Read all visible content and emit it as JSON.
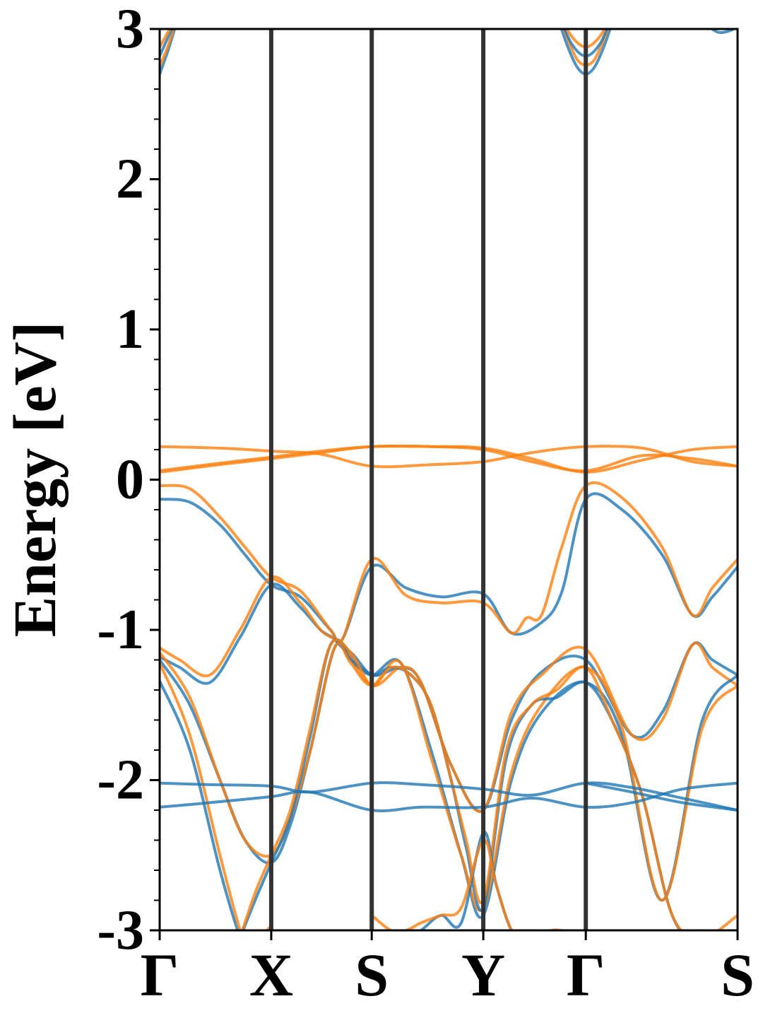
{
  "chart_data": {
    "type": "line",
    "ylabel": "Energy [eV]",
    "ylim": [
      -3,
      3
    ],
    "yticks": [
      {
        "value": 3,
        "label": "3"
      },
      {
        "value": 2,
        "label": "2"
      },
      {
        "value": 1,
        "label": "1"
      },
      {
        "value": 0,
        "label": "0"
      },
      {
        "value": -1,
        "label": "-1"
      },
      {
        "value": -2,
        "label": "-2"
      },
      {
        "value": -3,
        "label": "-3"
      }
    ],
    "xlim": [
      0,
      5.75
    ],
    "kpoints": [
      {
        "x": 0.0,
        "label": "Γ"
      },
      {
        "x": 1.11,
        "label": "X"
      },
      {
        "x": 2.11,
        "label": "S"
      },
      {
        "x": 3.22,
        "label": "Y"
      },
      {
        "x": 4.24,
        "label": "Γ"
      },
      {
        "x": 5.75,
        "label": "S"
      }
    ],
    "grid": false,
    "legend": "none",
    "colors": {
      "blue": "#1f77b4",
      "orange": "#ff7f0e",
      "kline": "#333333"
    },
    "series": [
      {
        "color": "blue",
        "x": [
          0.0,
          0.3,
          0.6,
          0.85,
          1.11,
          1.4,
          1.7,
          1.82,
          2.11,
          2.45,
          2.8,
          3.22,
          3.5,
          3.8,
          4.0,
          4.24,
          4.6,
          5.0,
          5.3,
          5.5,
          5.75
        ],
        "y": [
          -0.13,
          -0.15,
          -0.3,
          -0.5,
          -0.7,
          -0.78,
          -1.0,
          -1.06,
          -0.58,
          -0.72,
          -0.78,
          -0.76,
          -1.02,
          -0.95,
          -0.75,
          -0.13,
          -0.2,
          -0.5,
          -0.9,
          -0.78,
          -0.58
        ]
      },
      {
        "color": "orange",
        "x": [
          0.0,
          0.3,
          0.6,
          0.85,
          1.11,
          1.4,
          1.7,
          1.82,
          2.11,
          2.45,
          2.8,
          3.22,
          3.5,
          3.65,
          3.8,
          4.0,
          4.24,
          4.6,
          5.0,
          5.3,
          5.5,
          5.75
        ],
        "y": [
          -0.04,
          -0.06,
          -0.25,
          -0.45,
          -0.65,
          -0.74,
          -1.0,
          -1.06,
          -0.53,
          -0.77,
          -0.82,
          -0.82,
          -1.02,
          -0.92,
          -0.9,
          -0.45,
          -0.04,
          -0.12,
          -0.45,
          -0.9,
          -0.72,
          -0.53
        ]
      },
      {
        "color": "blue",
        "x": [
          0.0,
          0.2,
          0.5,
          0.8,
          1.11,
          1.4,
          1.6,
          1.74,
          1.82,
          2.11,
          2.4,
          2.6,
          2.9,
          3.22,
          3.5,
          3.8,
          4.24,
          4.7,
          5.0,
          5.3,
          5.5,
          5.75
        ],
        "y": [
          -1.18,
          -1.25,
          -1.35,
          -1.05,
          -0.7,
          -0.85,
          -1.0,
          -1.06,
          -1.12,
          -1.3,
          -1.25,
          -1.35,
          -1.9,
          -2.2,
          -1.6,
          -1.28,
          -1.2,
          -1.7,
          -1.55,
          -1.1,
          -1.2,
          -1.3
        ]
      },
      {
        "color": "orange",
        "x": [
          0.0,
          0.2,
          0.5,
          0.8,
          1.11,
          1.4,
          1.6,
          1.74,
          1.82,
          2.11,
          2.4,
          2.6,
          2.9,
          3.22,
          3.5,
          3.8,
          4.24,
          4.7,
          5.0,
          5.3,
          5.5,
          5.75
        ],
        "y": [
          -1.12,
          -1.2,
          -1.3,
          -1.0,
          -0.65,
          -0.82,
          -1.0,
          -1.06,
          -1.1,
          -1.37,
          -1.25,
          -1.35,
          -1.9,
          -2.2,
          -1.55,
          -1.3,
          -1.13,
          -1.7,
          -1.6,
          -1.1,
          -1.25,
          -1.37
        ]
      },
      {
        "color": "blue",
        "x": [
          0.0,
          0.3,
          0.6,
          0.85,
          1.11,
          1.3,
          1.5,
          1.74,
          1.9,
          2.11,
          2.4,
          2.7,
          3.0,
          3.22,
          3.5,
          3.8,
          4.24,
          4.6,
          5.0,
          5.4,
          5.75
        ],
        "y": [
          -1.2,
          -1.5,
          -2.0,
          -2.4,
          -2.55,
          -2.3,
          -1.8,
          -1.12,
          -1.2,
          -1.3,
          -1.22,
          -1.8,
          -2.5,
          -2.9,
          -2.0,
          -1.55,
          -1.35,
          -1.7,
          -2.8,
          -1.6,
          -1.3
        ]
      },
      {
        "color": "orange",
        "x": [
          0.0,
          0.3,
          0.6,
          0.85,
          1.11,
          1.3,
          1.5,
          1.74,
          1.9,
          2.11,
          2.4,
          2.7,
          3.0,
          3.22,
          3.5,
          3.8,
          4.24,
          4.6,
          5.0,
          5.4,
          5.75
        ],
        "y": [
          -1.15,
          -1.45,
          -2.0,
          -2.4,
          -2.5,
          -2.25,
          -1.8,
          -1.12,
          -1.22,
          -1.37,
          -1.22,
          -1.85,
          -2.5,
          -2.85,
          -1.95,
          -1.5,
          -1.25,
          -1.65,
          -2.8,
          -1.65,
          -1.37
        ]
      },
      {
        "color": "blue",
        "x": [
          0.0,
          0.3,
          0.6,
          0.8,
          0.9,
          1.0,
          1.11
        ],
        "y": [
          -1.34,
          -1.8,
          -2.6,
          -3.05,
          -3.2,
          -3.1,
          -3.0
        ]
      },
      {
        "color": "orange",
        "x": [
          0.0,
          0.3,
          0.6,
          0.8,
          0.9,
          1.0,
          1.11
        ],
        "y": [
          -1.22,
          -1.7,
          -2.5,
          -3.0,
          -3.15,
          -3.05,
          -2.97
        ]
      },
      {
        "color": "blue",
        "x": [
          0.8,
          0.95,
          1.11,
          1.3,
          1.5,
          1.7,
          1.9,
          2.11,
          2.3,
          2.5,
          2.7,
          2.9,
          3.05,
          3.22,
          3.45,
          3.7,
          3.95,
          4.24,
          4.5,
          4.8,
          5.1,
          5.4,
          5.75
        ],
        "y": [
          -3.05,
          -2.8,
          -2.55,
          -2.25,
          -1.7,
          -1.1,
          -1.15,
          -1.3,
          -1.25,
          -1.3,
          -1.5,
          -2.0,
          -2.45,
          -2.85,
          -1.85,
          -1.5,
          -1.45,
          -1.35,
          -1.6,
          -2.1,
          -2.9,
          -3.1,
          -3.1
        ]
      },
      {
        "color": "orange",
        "x": [
          0.8,
          0.95,
          1.11,
          1.3,
          1.5,
          1.7,
          1.9,
          2.11,
          2.3,
          2.5,
          2.7,
          2.9,
          3.05,
          3.22,
          3.45,
          3.7,
          3.95,
          4.24,
          4.5,
          4.8,
          5.1,
          5.4,
          5.75
        ],
        "y": [
          -3.05,
          -2.75,
          -2.5,
          -2.2,
          -1.65,
          -1.1,
          -1.15,
          -1.37,
          -1.25,
          -1.3,
          -1.5,
          -2.0,
          -2.4,
          -2.8,
          -1.8,
          -1.5,
          -1.4,
          -1.25,
          -1.6,
          -2.1,
          -2.9,
          -3.05,
          -2.9
        ]
      },
      {
        "color": "blue",
        "x": [
          2.11,
          2.3,
          2.45,
          2.6,
          2.8,
          3.0,
          3.22,
          3.35,
          3.5,
          3.7,
          3.9,
          4.24
        ],
        "y": [
          -3.0,
          -3.1,
          -3.05,
          -3.0,
          -2.9,
          -2.95,
          -2.35,
          -2.7,
          -3.0,
          -3.2,
          -3.05,
          -3.1
        ]
      },
      {
        "color": "orange",
        "x": [
          2.11,
          2.3,
          2.45,
          2.6,
          2.8,
          3.0,
          3.22,
          3.35,
          3.5,
          3.7,
          3.9,
          4.24
        ],
        "y": [
          -2.9,
          -3.0,
          -3.0,
          -2.95,
          -2.9,
          -2.85,
          -2.4,
          -2.7,
          -3.0,
          -3.15,
          -3.0,
          -3.05
        ]
      },
      {
        "color": "blue",
        "x": [
          0.0,
          0.5,
          1.11,
          1.5,
          2.11,
          2.6,
          3.22,
          3.7,
          4.24,
          4.7,
          5.2,
          5.75
        ],
        "y": [
          -2.02,
          -2.03,
          -2.04,
          -2.08,
          -2.02,
          -2.03,
          -2.06,
          -2.1,
          -2.02,
          -2.05,
          -2.12,
          -2.2
        ]
      },
      {
        "color": "blue",
        "x": [
          0.0,
          0.5,
          1.11,
          1.5,
          2.11,
          2.6,
          3.22,
          3.7,
          4.24,
          4.7,
          5.2,
          5.75
        ],
        "y": [
          -2.18,
          -2.15,
          -2.11,
          -2.08,
          -2.2,
          -2.18,
          -2.18,
          -2.12,
          -2.18,
          -2.15,
          -2.06,
          -2.02
        ]
      },
      {
        "color": "blue",
        "x": [
          4.24,
          4.7,
          5.2,
          5.75
        ],
        "y": [
          -2.02,
          -2.08,
          -2.15,
          -2.2
        ]
      },
      {
        "color": "orange",
        "x": [
          0.0,
          0.6,
          1.11,
          1.6,
          2.11,
          2.7,
          3.22,
          3.7,
          4.24,
          4.8,
          5.3,
          5.75
        ],
        "y": [
          0.22,
          0.21,
          0.19,
          0.17,
          0.09,
          0.1,
          0.12,
          0.18,
          0.22,
          0.21,
          0.12,
          0.09
        ]
      },
      {
        "color": "orange",
        "x": [
          0.0,
          0.6,
          1.11,
          1.6,
          2.11,
          2.7,
          3.22,
          3.7,
          4.24,
          4.8,
          5.3,
          5.75
        ],
        "y": [
          0.05,
          0.1,
          0.14,
          0.18,
          0.22,
          0.22,
          0.21,
          0.14,
          0.05,
          0.13,
          0.2,
          0.22
        ]
      },
      {
        "color": "orange",
        "x": [
          0.0,
          0.6,
          1.11,
          1.6,
          2.11,
          2.7,
          3.22,
          3.7,
          4.24,
          4.8,
          5.3,
          5.75
        ],
        "y": [
          0.06,
          0.11,
          0.15,
          0.19,
          0.22,
          0.22,
          0.2,
          0.12,
          0.06,
          0.16,
          0.14,
          0.09
        ]
      },
      {
        "color": "blue",
        "x": [
          0.0,
          0.08,
          0.15,
          0.2
        ],
        "y": [
          2.7,
          2.85,
          3.0,
          3.1
        ]
      },
      {
        "color": "orange",
        "x": [
          0.0,
          0.08,
          0.15,
          0.2
        ],
        "y": [
          2.75,
          2.88,
          3.02,
          3.1
        ]
      },
      {
        "color": "blue",
        "x": [
          0.0,
          0.1,
          0.18
        ],
        "y": [
          2.82,
          2.97,
          3.08
        ]
      },
      {
        "color": "orange",
        "x": [
          0.0,
          0.1,
          0.18
        ],
        "y": [
          2.88,
          3.0,
          3.08
        ]
      },
      {
        "color": "blue",
        "x": [
          3.95,
          4.05,
          4.15,
          4.24,
          4.33,
          4.43,
          4.53
        ],
        "y": [
          3.1,
          2.9,
          2.75,
          2.7,
          2.75,
          2.9,
          3.1
        ]
      },
      {
        "color": "orange",
        "x": [
          3.95,
          4.05,
          4.15,
          4.24,
          4.33,
          4.43,
          4.53
        ],
        "y": [
          3.12,
          2.95,
          2.8,
          2.76,
          2.8,
          2.95,
          3.12
        ]
      },
      {
        "color": "blue",
        "x": [
          3.98,
          4.1,
          4.24,
          4.38,
          4.5
        ],
        "y": [
          3.08,
          2.9,
          2.82,
          2.9,
          3.08
        ]
      },
      {
        "color": "orange",
        "x": [
          3.98,
          4.1,
          4.24,
          4.38,
          4.5
        ],
        "y": [
          3.1,
          2.95,
          2.88,
          2.95,
          3.1
        ]
      },
      {
        "color": "blue",
        "x": [
          5.4,
          5.55,
          5.68,
          5.75
        ],
        "y": [
          3.05,
          2.98,
          2.99,
          3.02
        ]
      }
    ]
  }
}
